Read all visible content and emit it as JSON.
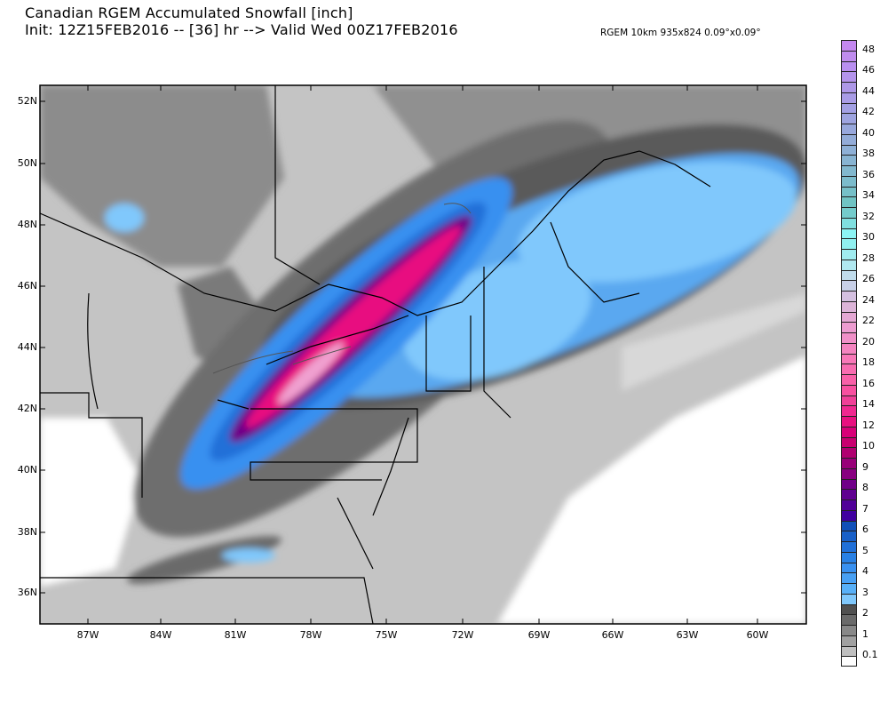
{
  "header": {
    "title": "Canadian RGEM Accumulated Snowfall [inch]",
    "subtitle": "Init: 12Z15FEB2016 -- [36] hr --> Valid Wed 00Z17FEB2016",
    "model_info": "RGEM 10km 935x824 0.09°x0.09°"
  },
  "map": {
    "lat_labels": [
      "52N",
      "50N",
      "48N",
      "46N",
      "44N",
      "42N",
      "40N",
      "38N",
      "36N"
    ],
    "lon_labels": [
      "87W",
      "84W",
      "81W",
      "78W",
      "75W",
      "72W",
      "69W",
      "66W",
      "63W",
      "60W"
    ]
  },
  "colorbar": {
    "labels": [
      "48",
      "46",
      "44",
      "42",
      "40",
      "38",
      "36",
      "34",
      "32",
      "30",
      "28",
      "26",
      "24",
      "22",
      "20",
      "18",
      "16",
      "14",
      "12",
      "10",
      "9",
      "8",
      "7",
      "6",
      "5",
      "4",
      "3",
      "2",
      "1",
      "0.1"
    ],
    "colors": [
      "#c488f0",
      "#bf8cee",
      "#b98ff0",
      "#b494ec",
      "#ae98e8",
      "#a99ce6",
      "#a3a0e4",
      "#9ea4e0",
      "#98a8dc",
      "#93acd8",
      "#8eb0d6",
      "#88b4d2",
      "#82b8ce",
      "#7cbccc",
      "#76c0c8",
      "#70c4c4",
      "#74cccc",
      "#80e0e0",
      "#8cf4f4",
      "#90f0f0",
      "#a0ecf0",
      "#b0e8f0",
      "#c0dcec",
      "#c8d0e8",
      "#d4c0e0",
      "#dcb4d8",
      "#e4a8d4",
      "#ec9cd0",
      "#f090c8",
      "#f484c0",
      "#f878b8",
      "#f86cb0",
      "#f860a8",
      "#f850a0",
      "#f04098",
      "#f02890",
      "#e81080",
      "#d80078",
      "#c80070",
      "#b00070",
      "#980078",
      "#880080",
      "#700088",
      "#600090",
      "#500098",
      "#4000a0",
      "#1050b8",
      "#1860c8",
      "#2070d8",
      "#2880e4",
      "#3890f0",
      "#48a0f4",
      "#58b0f8",
      "#80c8fc",
      "#505050",
      "#6a6a6a",
      "#888888",
      "#a0a0a0",
      "#c0c0c0",
      "#ffffff"
    ]
  }
}
